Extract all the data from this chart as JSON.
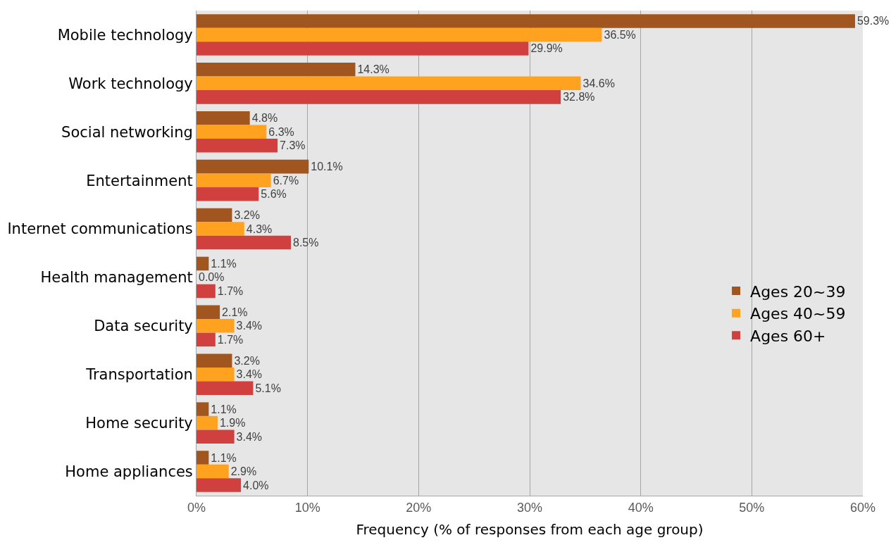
{
  "chart_data": {
    "type": "bar",
    "orientation": "horizontal",
    "xlabel": "Frequency (% of responses from each age group)",
    "categories": [
      "Mobile technology",
      "Work technology",
      "Social networking",
      "Entertainment",
      "Internet communications",
      "Health management",
      "Data security",
      "Transportation",
      "Home security",
      "Home appliances"
    ],
    "series": [
      {
        "name": "Ages 20~39",
        "color": "#a0561e",
        "values": [
          59.3,
          14.3,
          4.8,
          10.1,
          3.2,
          1.1,
          2.1,
          3.2,
          1.1,
          1.1
        ],
        "value_labels": [
          "59.3%",
          "14.3%",
          "4.8%",
          "10.1%",
          "3.2%",
          "1.1%",
          "2.1%",
          "3.2%",
          "1.1%",
          "1.1%"
        ]
      },
      {
        "name": "Ages 40~59",
        "color": "#ffa21f",
        "values": [
          36.5,
          34.6,
          6.3,
          6.7,
          4.3,
          0.0,
          3.4,
          3.4,
          1.9,
          2.9
        ],
        "value_labels": [
          "36.5%",
          "34.6%",
          "6.3%",
          "6.7%",
          "4.3%",
          "0.0%",
          "3.4%",
          "3.4%",
          "1.9%",
          "2.9%"
        ]
      },
      {
        "name": "Ages 60+",
        "color": "#d0403f",
        "values": [
          29.9,
          32.8,
          7.3,
          5.6,
          8.5,
          1.7,
          1.7,
          5.1,
          3.4,
          4.0
        ],
        "value_labels": [
          "29.9%",
          "32.8%",
          "7.3%",
          "5.6%",
          "8.5%",
          "1.7%",
          "1.7%",
          "5.1%",
          "3.4%",
          "4.0%"
        ]
      }
    ],
    "xlim": [
      0,
      60
    ],
    "xticks": [
      {
        "value": 0,
        "label": "0%"
      },
      {
        "value": 10,
        "label": "10%"
      },
      {
        "value": 20,
        "label": "20%"
      },
      {
        "value": 30,
        "label": "30%"
      },
      {
        "value": 40,
        "label": "40%"
      },
      {
        "value": 50,
        "label": "50%"
      },
      {
        "value": 60,
        "label": "60%"
      }
    ],
    "grid": "x",
    "legend": "bottom right"
  }
}
